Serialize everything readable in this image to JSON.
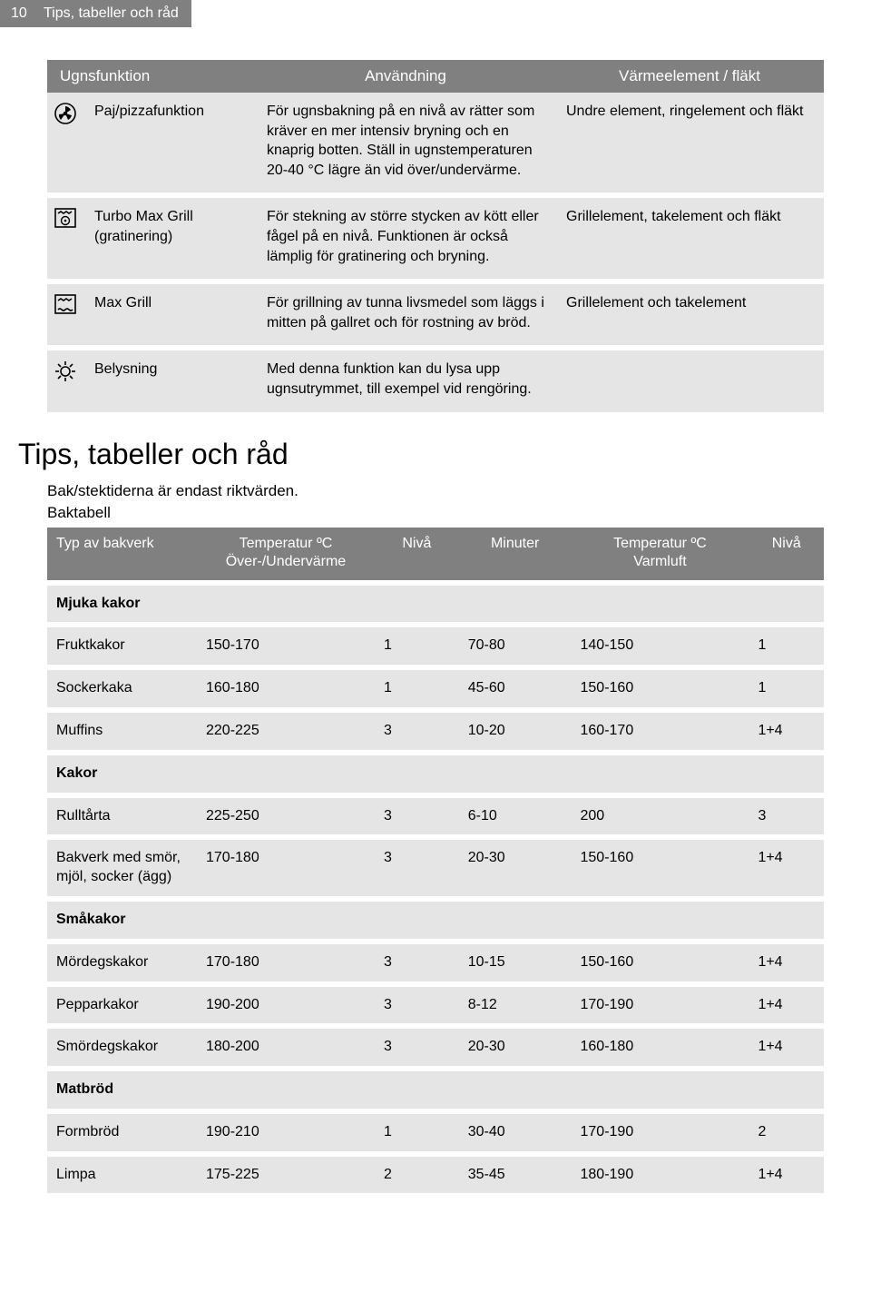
{
  "page_number": "10",
  "page_title_tab": "Tips, tabeller och råd",
  "table1": {
    "headers": [
      "Ugnsfunktion",
      "Användning",
      "Värmeelement / fläkt"
    ],
    "rows": [
      {
        "func": "Paj/pizzafunktion",
        "use": "För ugnsbakning på en nivå av rätter som kräver en mer intensiv bryning och en knaprig botten. Ställ in ugnstemperaturen 20-40 °C lägre än vid över/undervärme.",
        "heat": "Undre element, ringelement och fläkt"
      },
      {
        "func": "Turbo Max Grill (gratinering)",
        "use": "För stekning av större stycken av kött eller fågel på en nivå. Funktionen är också lämplig för gratinering och bryning.",
        "heat": "Grillelement, takelement och fläkt"
      },
      {
        "func": "Max Grill",
        "use": "För grillning av tunna livsmedel som läggs i mitten på gallret och för rostning av bröd.",
        "heat": "Grillelement och takelement"
      },
      {
        "func": "Belysning",
        "use": "Med denna funktion kan du lysa upp ugnsutrymmet, till exempel vid rengöring.",
        "heat": ""
      }
    ]
  },
  "section_heading": "Tips, tabeller och råd",
  "intro_line1": "Bak/stektiderna är endast riktvärden.",
  "intro_line2": "Baktabell",
  "table2": {
    "headers": {
      "c1": "Typ av bakverk",
      "c2a": "Temperatur ºC",
      "c2b": "Över-/Undervärme",
      "c3": "Nivå",
      "c4": "Minuter",
      "c5a": "Temperatur ºC",
      "c5b": "Varmluft",
      "c6": "Nivå"
    },
    "rows": [
      {
        "type": "cat",
        "c1": "Mjuka kakor"
      },
      {
        "type": "data",
        "c1": "Fruktkakor",
        "c2": "150-170",
        "c3": "1",
        "c4": "70-80",
        "c5": "140-150",
        "c6": "1"
      },
      {
        "type": "data",
        "c1": "Sockerkaka",
        "c2": "160-180",
        "c3": "1",
        "c4": "45-60",
        "c5": "150-160",
        "c6": "1"
      },
      {
        "type": "data",
        "c1": "Muffins",
        "c2": "220-225",
        "c3": "3",
        "c4": "10-20",
        "c5": "160-170",
        "c6": "1+4"
      },
      {
        "type": "cat",
        "c1": "Kakor"
      },
      {
        "type": "data",
        "c1": "Rulltårta",
        "c2": "225-250",
        "c3": "3",
        "c4": "6-10",
        "c5": "200",
        "c6": "3"
      },
      {
        "type": "data",
        "c1": "Bakverk med smör, mjöl, socker (ägg)",
        "c2": "170-180",
        "c3": "3",
        "c4": "20-30",
        "c5": "150-160",
        "c6": "1+4"
      },
      {
        "type": "cat",
        "c1": "Småkakor"
      },
      {
        "type": "data",
        "c1": "Mördegskakor",
        "c2": "170-180",
        "c3": "3",
        "c4": "10-15",
        "c5": "150-160",
        "c6": "1+4"
      },
      {
        "type": "data",
        "c1": "Pepparkakor",
        "c2": "190-200",
        "c3": "3",
        "c4": "8-12",
        "c5": "170-190",
        "c6": "1+4"
      },
      {
        "type": "data",
        "c1": "Smördegskakor",
        "c2": "180-200",
        "c3": "3",
        "c4": "20-30",
        "c5": "160-180",
        "c6": "1+4"
      },
      {
        "type": "cat",
        "c1": "Matbröd"
      },
      {
        "type": "data",
        "c1": "Formbröd",
        "c2": "190-210",
        "c3": "1",
        "c4": "30-40",
        "c5": "170-190",
        "c6": "2"
      },
      {
        "type": "data",
        "c1": "Limpa",
        "c2": "175-225",
        "c3": "2",
        "c4": "35-45",
        "c5": "180-190",
        "c6": "1+4"
      }
    ]
  },
  "colors": {
    "header_bg": "#808080",
    "cell_bg": "#e5e5e5",
    "page_bg": "#ffffff",
    "text": "#000000",
    "header_text": "#ffffff"
  }
}
